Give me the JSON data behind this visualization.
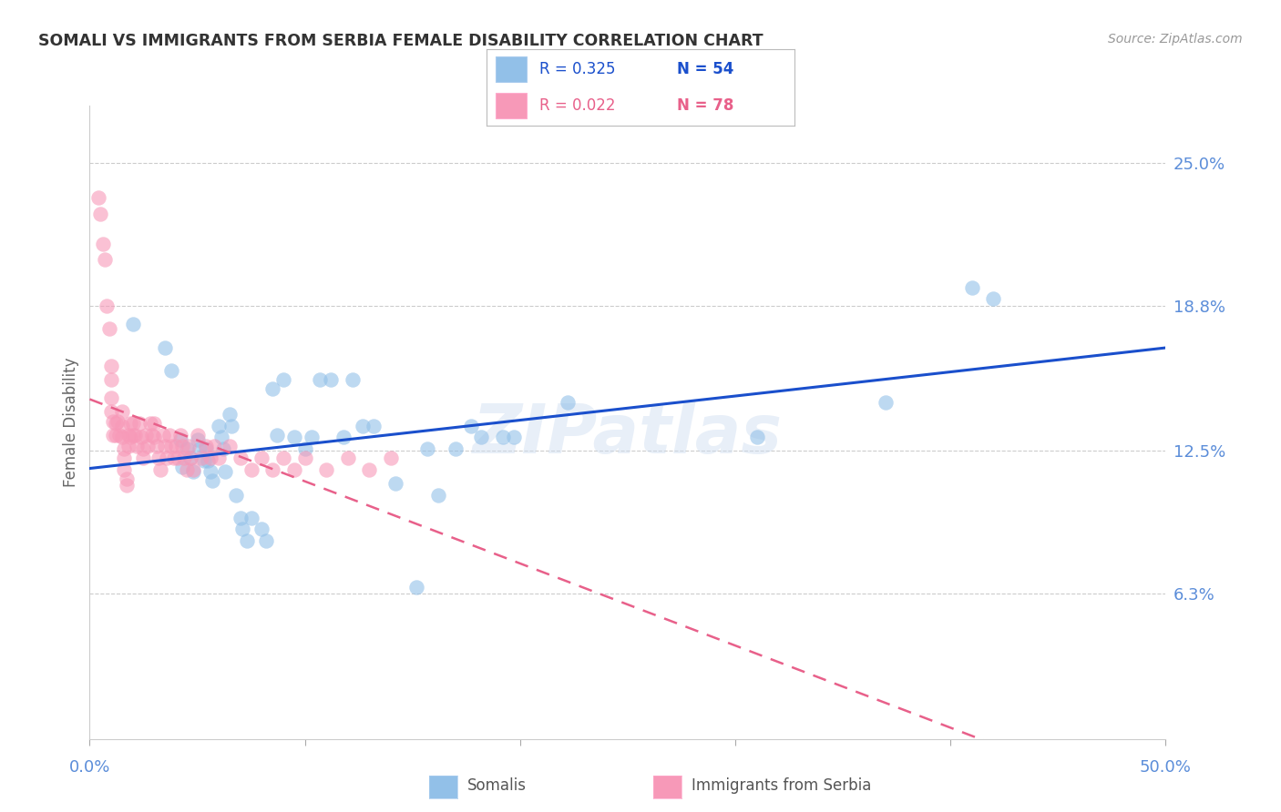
{
  "title": "SOMALI VS IMMIGRANTS FROM SERBIA FEMALE DISABILITY CORRELATION CHART",
  "source": "Source: ZipAtlas.com",
  "ylabel": "Female Disability",
  "ytick_values": [
    0.063,
    0.125,
    0.188,
    0.25
  ],
  "ytick_labels": [
    "6.3%",
    "12.5%",
    "18.8%",
    "25.0%"
  ],
  "xmin": 0.0,
  "xmax": 0.5,
  "ymin": 0.0,
  "ymax": 0.275,
  "somali_color": "#92c0e8",
  "serbia_color": "#f799b8",
  "trendline_somali_color": "#1a4fcc",
  "trendline_serbia_color": "#e8608a",
  "watermark": "ZIPatlas",
  "background_color": "#ffffff",
  "grid_color": "#cccccc",
  "title_color": "#333333",
  "axis_label_color": "#5b8dd9",
  "somali_x": [
    0.02,
    0.035,
    0.038,
    0.042,
    0.043,
    0.045,
    0.047,
    0.048,
    0.05,
    0.051,
    0.053,
    0.054,
    0.055,
    0.056,
    0.057,
    0.06,
    0.061,
    0.062,
    0.063,
    0.065,
    0.066,
    0.068,
    0.07,
    0.071,
    0.073,
    0.075,
    0.08,
    0.082,
    0.085,
    0.087,
    0.09,
    0.095,
    0.1,
    0.103,
    0.107,
    0.112,
    0.118,
    0.122,
    0.127,
    0.132,
    0.142,
    0.152,
    0.157,
    0.162,
    0.17,
    0.177,
    0.182,
    0.192,
    0.197,
    0.222,
    0.31,
    0.37,
    0.41,
    0.42
  ],
  "somali_y": [
    0.18,
    0.17,
    0.16,
    0.13,
    0.118,
    0.126,
    0.122,
    0.116,
    0.13,
    0.126,
    0.121,
    0.126,
    0.121,
    0.116,
    0.112,
    0.136,
    0.131,
    0.126,
    0.116,
    0.141,
    0.136,
    0.106,
    0.096,
    0.091,
    0.086,
    0.096,
    0.091,
    0.086,
    0.152,
    0.132,
    0.156,
    0.131,
    0.126,
    0.131,
    0.156,
    0.156,
    0.131,
    0.156,
    0.136,
    0.136,
    0.111,
    0.066,
    0.126,
    0.106,
    0.126,
    0.136,
    0.131,
    0.131,
    0.131,
    0.146,
    0.131,
    0.146,
    0.196,
    0.191
  ],
  "serbia_x": [
    0.004,
    0.005,
    0.006,
    0.007,
    0.008,
    0.009,
    0.01,
    0.01,
    0.01,
    0.01,
    0.011,
    0.011,
    0.012,
    0.012,
    0.013,
    0.014,
    0.015,
    0.015,
    0.015,
    0.016,
    0.016,
    0.016,
    0.017,
    0.017,
    0.018,
    0.018,
    0.019,
    0.019,
    0.02,
    0.02,
    0.021,
    0.022,
    0.023,
    0.024,
    0.025,
    0.025,
    0.026,
    0.027,
    0.028,
    0.029,
    0.03,
    0.03,
    0.031,
    0.032,
    0.033,
    0.034,
    0.035,
    0.036,
    0.037,
    0.038,
    0.039,
    0.04,
    0.041,
    0.042,
    0.043,
    0.044,
    0.045,
    0.046,
    0.047,
    0.048,
    0.05,
    0.052,
    0.054,
    0.056,
    0.058,
    0.06,
    0.065,
    0.07,
    0.075,
    0.08,
    0.085,
    0.09,
    0.095,
    0.1,
    0.11,
    0.12,
    0.13,
    0.14
  ],
  "serbia_y": [
    0.235,
    0.228,
    0.215,
    0.208,
    0.188,
    0.178,
    0.162,
    0.156,
    0.148,
    0.142,
    0.138,
    0.132,
    0.137,
    0.132,
    0.138,
    0.132,
    0.142,
    0.136,
    0.131,
    0.126,
    0.122,
    0.117,
    0.113,
    0.11,
    0.132,
    0.127,
    0.137,
    0.131,
    0.137,
    0.132,
    0.132,
    0.127,
    0.137,
    0.131,
    0.126,
    0.122,
    0.132,
    0.127,
    0.137,
    0.132,
    0.137,
    0.131,
    0.127,
    0.122,
    0.117,
    0.132,
    0.127,
    0.122,
    0.132,
    0.127,
    0.122,
    0.127,
    0.122,
    0.132,
    0.127,
    0.122,
    0.117,
    0.127,
    0.122,
    0.117,
    0.132,
    0.122,
    0.127,
    0.122,
    0.127,
    0.122,
    0.127,
    0.122,
    0.117,
    0.122,
    0.117,
    0.122,
    0.117,
    0.122,
    0.117,
    0.122,
    0.117,
    0.122
  ]
}
